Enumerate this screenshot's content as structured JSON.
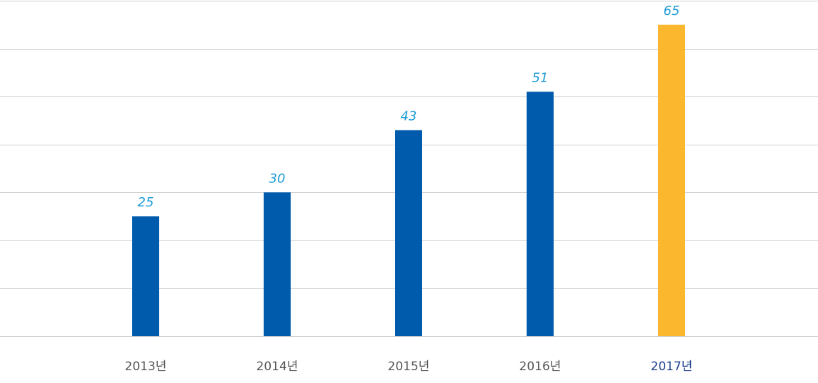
{
  "chart_data": {
    "type": "bar",
    "categories": [
      "2013년",
      "2014년",
      "2015년",
      "2016년",
      "2017년"
    ],
    "values": [
      25,
      30,
      43,
      51,
      65
    ],
    "colors": [
      "#005bac",
      "#005bac",
      "#005bac",
      "#005bac",
      "#fbb72d"
    ],
    "label_colors": [
      "#555555",
      "#555555",
      "#555555",
      "#555555",
      "#1a3e8c"
    ],
    "ylim": [
      0,
      70
    ],
    "yticks": [
      0,
      10,
      20,
      30,
      40,
      50,
      60,
      70
    ],
    "grid": true
  }
}
